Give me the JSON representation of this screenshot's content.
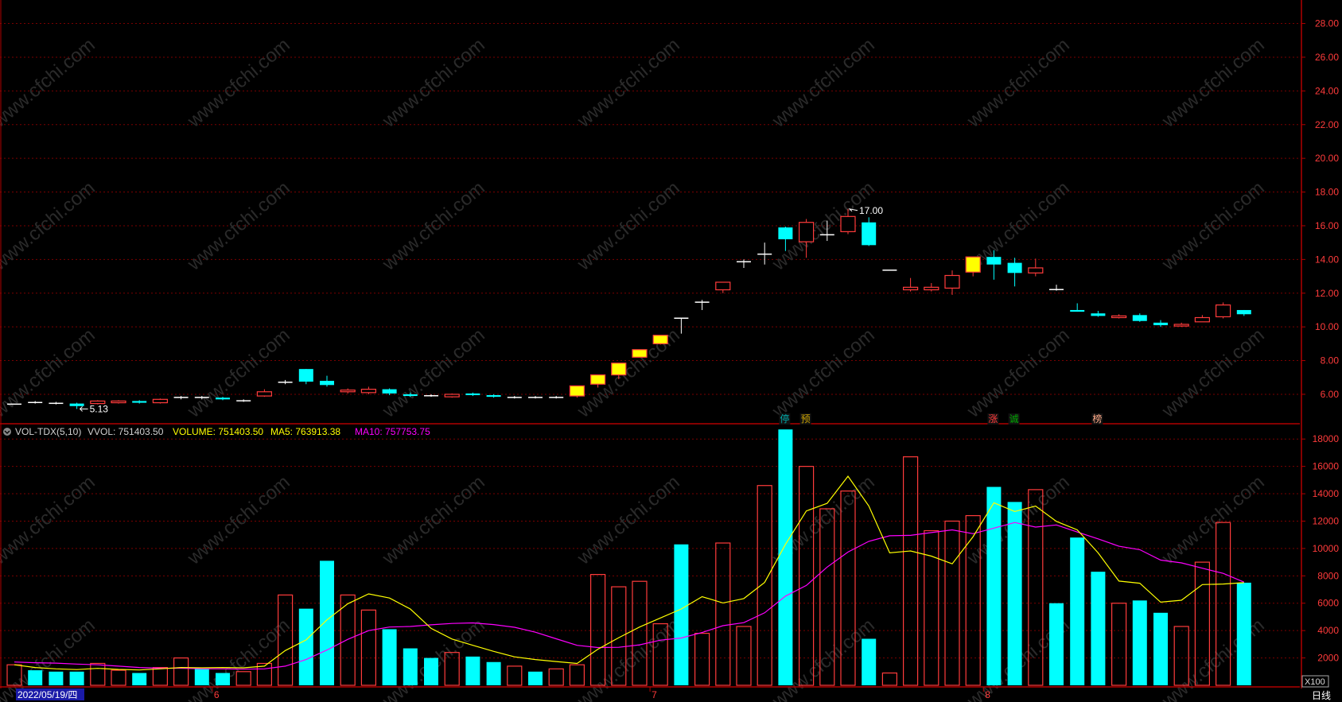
{
  "watermark": "www.cfchi.com",
  "colors": {
    "up": "#ff3b3b",
    "down": "#00ffff",
    "limit": "#ffff00",
    "ma5": "#ffff00",
    "ma10": "#ff00ff",
    "grid": "#7a0000",
    "axis": "#b00000"
  },
  "price_axis": {
    "ticks": [
      "28.00",
      "26.00",
      "24.00",
      "22.00",
      "20.00",
      "18.00",
      "16.00",
      "14.00",
      "12.00",
      "10.00",
      "8.00",
      "6.00"
    ],
    "range": [
      4.3,
      29.3
    ]
  },
  "volume_axis": {
    "ticks": [
      "18000",
      "16000",
      "14000",
      "12000",
      "10000",
      "8000",
      "6000",
      "4000",
      "2000"
    ],
    "range": [
      0,
      19000
    ],
    "unit": "X100"
  },
  "indicator": {
    "name": "VOL-TDX(5,10)",
    "vvol": "VVOL: 751403.50",
    "volume": "VOLUME: 751403.50",
    "ma5": "MA5: 763913.38",
    "ma10": "MA10: 757753.75"
  },
  "annotations": {
    "high_label": "17.00",
    "low_label": "5.13"
  },
  "markers": [
    "停",
    "预",
    "涨",
    "诚",
    "榜"
  ],
  "marker_at": [
    37,
    38,
    47,
    48,
    52
  ],
  "x_axis": {
    "date_label": "2022/05/19/四",
    "month_labels": [
      "6",
      "7",
      "8"
    ],
    "month_at": [
      9.5,
      30.5,
      46.5
    ],
    "cycle": "日线"
  },
  "chart_data": {
    "type": "candlestick",
    "candles": [
      [
        5.45,
        5.45,
        5.45,
        5.45,
        1500
      ],
      [
        5.55,
        5.5,
        5.6,
        5.45,
        1100
      ],
      [
        5.5,
        5.45,
        5.55,
        5.4,
        1000
      ],
      [
        5.45,
        5.3,
        5.5,
        5.13,
        1000
      ],
      [
        5.45,
        5.6,
        5.65,
        5.4,
        1600
      ],
      [
        5.5,
        5.6,
        5.65,
        5.45,
        1100
      ],
      [
        5.6,
        5.5,
        5.65,
        5.45,
        900
      ],
      [
        5.5,
        5.7,
        5.75,
        5.45,
        1300
      ],
      [
        5.8,
        5.85,
        5.9,
        5.7,
        2000
      ],
      [
        5.85,
        5.8,
        5.9,
        5.7,
        1200
      ],
      [
        5.8,
        5.7,
        5.85,
        5.65,
        900
      ],
      [
        5.6,
        5.65,
        5.7,
        5.55,
        1000
      ],
      [
        5.9,
        6.15,
        6.3,
        5.85,
        1600
      ],
      [
        6.7,
        6.75,
        6.85,
        6.6,
        6600
      ],
      [
        7.5,
        6.75,
        7.5,
        6.6,
        5600
      ],
      [
        6.8,
        6.55,
        7.1,
        6.45,
        9100
      ],
      [
        6.15,
        6.25,
        6.35,
        6.05,
        6600
      ],
      [
        6.1,
        6.3,
        6.45,
        6.0,
        5500
      ],
      [
        6.3,
        6.05,
        6.35,
        5.95,
        4100
      ],
      [
        6.0,
        5.9,
        6.1,
        5.85,
        2700
      ],
      [
        5.95,
        5.9,
        6.0,
        5.85,
        2000
      ],
      [
        5.85,
        6.0,
        6.05,
        5.8,
        2400
      ],
      [
        6.05,
        5.95,
        6.1,
        5.9,
        2100
      ],
      [
        5.95,
        5.85,
        6.0,
        5.8,
        1700
      ],
      [
        5.8,
        5.85,
        5.9,
        5.75,
        1400
      ],
      [
        5.85,
        5.8,
        5.9,
        5.75,
        1000
      ],
      [
        5.8,
        5.85,
        5.9,
        5.75,
        1200
      ],
      [
        5.9,
        6.5,
        6.5,
        5.8,
        1500
      ],
      [
        6.6,
        7.15,
        7.15,
        6.4,
        8100
      ],
      [
        7.15,
        7.85,
        7.85,
        6.9,
        7200
      ],
      [
        8.2,
        8.65,
        8.65,
        8.2,
        7600
      ],
      [
        9.0,
        9.5,
        9.5,
        8.95,
        4500
      ],
      [
        10.55,
        10.5,
        10.55,
        9.6,
        10300
      ],
      [
        11.45,
        11.5,
        11.6,
        11.0,
        3800
      ],
      [
        12.2,
        12.65,
        12.65,
        12.0,
        10400
      ],
      [
        13.9,
        13.9,
        14.0,
        13.5,
        4300
      ],
      [
        14.35,
        14.35,
        15.0,
        13.7,
        14600
      ],
      [
        15.9,
        15.2,
        15.95,
        14.5,
        18700
      ],
      [
        15.05,
        16.2,
        16.4,
        14.1,
        16000
      ],
      [
        15.5,
        15.5,
        16.3,
        15.1,
        12900
      ],
      [
        15.65,
        16.55,
        17.0,
        15.5,
        14200
      ],
      [
        16.2,
        14.85,
        16.5,
        14.8,
        3400
      ],
      [
        13.4,
        13.4,
        13.4,
        13.4,
        900
      ],
      [
        12.2,
        12.35,
        12.9,
        12.1,
        16700
      ],
      [
        12.2,
        12.35,
        12.6,
        12.1,
        11300
      ],
      [
        12.3,
        13.05,
        13.35,
        11.9,
        12000
      ],
      [
        13.25,
        14.15,
        14.15,
        13.0,
        12400
      ],
      [
        14.15,
        13.7,
        14.55,
        12.8,
        14500
      ],
      [
        13.8,
        13.2,
        14.1,
        12.4,
        13400
      ],
      [
        13.2,
        13.5,
        14.05,
        13.0,
        14300
      ],
      [
        12.25,
        12.2,
        12.5,
        12.15,
        6000
      ],
      [
        11.0,
        10.9,
        11.4,
        10.9,
        10800
      ],
      [
        10.8,
        10.65,
        10.95,
        10.6,
        8300
      ],
      [
        10.55,
        10.65,
        10.75,
        10.5,
        6000
      ],
      [
        10.7,
        10.35,
        10.8,
        10.3,
        6200
      ],
      [
        10.25,
        10.1,
        10.4,
        10.0,
        5300
      ],
      [
        10.05,
        10.15,
        10.25,
        10.0,
        4300
      ],
      [
        10.3,
        10.55,
        10.7,
        10.3,
        9000
      ],
      [
        10.6,
        11.3,
        11.45,
        10.5,
        11900
      ],
      [
        11.0,
        10.75,
        11.0,
        10.65,
        7500
      ]
    ],
    "limit_up_days": [
      27,
      28,
      29,
      30,
      31,
      46
    ],
    "ma5": [
      1500,
      1300,
      1200,
      1150,
      1240,
      1160,
      1120,
      1200,
      1300,
      1280,
      1300,
      1280,
      1400,
      2540,
      3320,
      4780,
      5960,
      6680,
      6380,
      5580,
      4160,
      3380,
      2920,
      2480,
      2080,
      1880,
      1740,
      1600,
      2640,
      3480,
      4260,
      4920,
      5580,
      6480,
      6020,
      6340,
      7520,
      10300,
      12740,
      13300,
      15280,
      13100,
      9680,
      9820,
      9440,
      8880,
      10860,
      13340,
      12700,
      13100,
      11980,
      11360,
      9680,
      7620,
      7460,
      6080,
      6220,
      7360,
      7400,
      7500
    ],
    "ma10": [
      1700,
      1650,
      1620,
      1550,
      1500,
      1400,
      1300,
      1250,
      1250,
      1210,
      1200,
      1180,
      1200,
      1400,
      1880,
      2580,
      3360,
      4000,
      4260,
      4300,
      4420,
      4520,
      4560,
      4440,
      4240,
      3880,
      3400,
      2920,
      2760,
      2780,
      2960,
      3300,
      3460,
      3860,
      4360,
      4580,
      5300,
      6520,
      7300,
      8640,
      9740,
      10520,
      10930,
      10960,
      11160,
      11360,
      11080,
      11490,
      11900,
      11560,
      11720,
      11200,
      10700,
      10160,
      9910,
      9150,
      8950,
      8560,
      8180,
      7540
    ]
  }
}
